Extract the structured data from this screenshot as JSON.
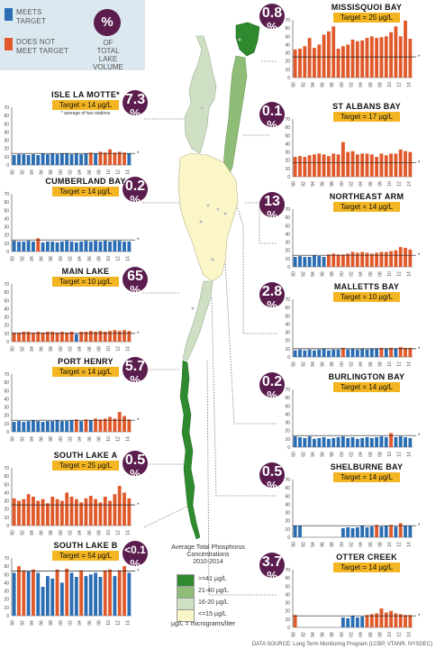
{
  "legend": {
    "meets_label_1": "MEETS",
    "meets_label_2": "TARGET",
    "not_label_1": "DOES NOT",
    "not_label_2": "MEET TARGET",
    "meets_color": "#2a6db3",
    "not_color": "#e0592a",
    "pct_symbol": "%",
    "pct_label_1": "OF",
    "pct_label_2": "TOTAL LAKE",
    "pct_label_3": "VOLUME"
  },
  "map_legend": {
    "title_1": "Average Total Phosphorus",
    "title_2": "Concentrations",
    "title_3": "2010-2014",
    "items": [
      {
        "label": ">=41 µg/L",
        "color": "#2f8a2f"
      },
      {
        "label": "21-40 µg/L",
        "color": "#8fbd77"
      },
      {
        "label": "16-20 µg/L",
        "color": "#cfdfc3"
      },
      {
        "label": "<=15 µg/L",
        "color": "#fbf6c8"
      }
    ],
    "unit_note": "µg/L = micrograms/liter"
  },
  "source": "DATA SOURCE: Long Term Monitoring Program (LCBP, VTANR, NYSDEC)",
  "colors": {
    "meets": "#2a6db3",
    "not": "#e0592a",
    "pct_circle": "#5a1d4e",
    "target_box": "#f3b521"
  },
  "chart_data": [
    {
      "type": "bar",
      "title": "MISSISQUOI BAY",
      "target_label": "Target = 25 µg/L",
      "target": 25,
      "pct": "0.8",
      "ylim": [
        0,
        70
      ],
      "yticks": [
        0,
        10,
        20,
        30,
        40,
        50,
        60,
        70
      ],
      "xticks": [
        "90",
        "92",
        "94",
        "96",
        "98",
        "00",
        "02",
        "04",
        "06",
        "08",
        "10",
        "12",
        "14"
      ],
      "x": [
        1990,
        1991,
        1992,
        1993,
        1994,
        1995,
        1996,
        1997,
        1998,
        1999,
        2000,
        2001,
        2002,
        2003,
        2004,
        2005,
        2006,
        2007,
        2008,
        2009,
        2010,
        2011,
        2012,
        2013,
        2014
      ],
      "values": [
        34,
        35,
        38,
        48,
        36,
        40,
        52,
        56,
        62,
        35,
        38,
        40,
        46,
        44,
        45,
        48,
        50,
        48,
        49,
        50,
        55,
        62,
        50,
        69,
        47
      ]
    },
    {
      "type": "bar",
      "title": "ST ALBANS BAY",
      "target_label": "Target = 17 µg/L",
      "target": 17,
      "pct": "0.1",
      "ylim": [
        0,
        70
      ],
      "yticks": [
        0,
        10,
        20,
        30,
        40,
        50,
        60,
        70
      ],
      "xticks": [
        "90",
        "92",
        "94",
        "96",
        "98",
        "00",
        "02",
        "04",
        "06",
        "08",
        "10",
        "12",
        "14"
      ],
      "x": [
        1990,
        1991,
        1992,
        1993,
        1994,
        1995,
        1996,
        1997,
        1998,
        1999,
        2000,
        2001,
        2002,
        2003,
        2004,
        2005,
        2006,
        2007,
        2008,
        2009,
        2010,
        2011,
        2012,
        2013,
        2014
      ],
      "values": [
        24,
        25,
        24,
        26,
        27,
        28,
        27,
        25,
        28,
        27,
        42,
        30,
        31,
        27,
        28,
        28,
        27,
        24,
        28,
        26,
        28,
        28,
        33,
        31,
        30
      ]
    },
    {
      "type": "bar",
      "title": "NORTHEAST ARM",
      "target_label": "Target = 14 µg/L",
      "target": 14,
      "pct": "13",
      "ylim": [
        0,
        70
      ],
      "yticks": [
        0,
        10,
        20,
        30,
        40,
        50,
        60,
        70
      ],
      "xticks": [
        "90",
        "92",
        "94",
        "96",
        "98",
        "00",
        "02",
        "04",
        "06",
        "08",
        "10",
        "12",
        "14"
      ],
      "x": [
        1990,
        1991,
        1992,
        1993,
        1994,
        1995,
        1996,
        1997,
        1998,
        1999,
        2000,
        2001,
        2002,
        2003,
        2004,
        2005,
        2006,
        2007,
        2008,
        2009,
        2010,
        2011,
        2012,
        2013,
        2014
      ],
      "values": [
        12,
        13,
        12,
        12,
        14,
        13,
        12,
        15,
        16,
        15,
        15,
        16,
        18,
        17,
        18,
        17,
        16,
        17,
        18,
        18,
        19,
        20,
        24,
        23,
        21
      ]
    },
    {
      "type": "bar",
      "title": "MALLETTS BAY",
      "target_label": "Target = 10 µg/L",
      "target": 10,
      "pct": "2.8",
      "ylim": [
        0,
        70
      ],
      "yticks": [
        0,
        10,
        20,
        30,
        40,
        50,
        60,
        70
      ],
      "xticks": [
        "90",
        "92",
        "94",
        "96",
        "98",
        "00",
        "02",
        "04",
        "06",
        "08",
        "10",
        "12",
        "14"
      ],
      "x": [
        1990,
        1991,
        1992,
        1993,
        1994,
        1995,
        1996,
        1997,
        1998,
        1999,
        2000,
        2001,
        2002,
        2003,
        2004,
        2005,
        2006,
        2007,
        2008,
        2009,
        2010,
        2011,
        2012,
        2013,
        2014
      ],
      "values": [
        8,
        9,
        8,
        9,
        8,
        9,
        10,
        8,
        9,
        9,
        11,
        9,
        10,
        9,
        10,
        9,
        10,
        10,
        11,
        10,
        11,
        10,
        12,
        11,
        11
      ]
    },
    {
      "type": "bar",
      "title": "BURLINGTON BAY",
      "target_label": "Target = 14 µg/L",
      "target": 14,
      "pct": "0.2",
      "ylim": [
        0,
        70
      ],
      "yticks": [
        0,
        10,
        20,
        30,
        40,
        50,
        60,
        70
      ],
      "xticks": [
        "90",
        "92",
        "94",
        "96",
        "98",
        "00",
        "02",
        "04",
        "06",
        "08",
        "10",
        "12",
        "14"
      ],
      "x": [
        1990,
        1991,
        1992,
        1993,
        1994,
        1995,
        1996,
        1997,
        1998,
        1999,
        2000,
        2001,
        2002,
        2003,
        2004,
        2005,
        2006,
        2007,
        2008,
        2009,
        2010,
        2011,
        2012,
        2013,
        2014
      ],
      "values": [
        13,
        12,
        11,
        13,
        10,
        11,
        12,
        10,
        11,
        12,
        13,
        11,
        12,
        10,
        11,
        12,
        11,
        12,
        13,
        12,
        17,
        12,
        13,
        12,
        11
      ]
    },
    {
      "type": "bar",
      "title": "SHELBURNE BAY",
      "target_label": "Target = 14 µg/L",
      "target": 14,
      "pct": "0.5",
      "ylim": [
        0,
        70
      ],
      "yticks": [
        0,
        10,
        20,
        30,
        40,
        50,
        60,
        70
      ],
      "xticks": [
        "90",
        "92",
        "94",
        "96",
        "98",
        "00",
        "02",
        "04",
        "06",
        "08",
        "10",
        "12",
        "14"
      ],
      "x": [
        1990,
        1991,
        1992,
        1993,
        1994,
        1995,
        1996,
        1997,
        1998,
        1999,
        2000,
        2001,
        2002,
        2003,
        2004,
        2005,
        2006,
        2007,
        2008,
        2009,
        2010,
        2011,
        2012,
        2013,
        2014
      ],
      "values": [
        14,
        14,
        null,
        null,
        null,
        null,
        null,
        null,
        null,
        null,
        11,
        12,
        11,
        12,
        14,
        12,
        13,
        15,
        13,
        14,
        15,
        13,
        17,
        14,
        14
      ]
    },
    {
      "type": "bar",
      "title": "OTTER CREEK",
      "target_label": "Target = 14 µg/L",
      "target": 14,
      "pct": "3.7",
      "ylim": [
        0,
        70
      ],
      "yticks": [
        0,
        10,
        20,
        30,
        40,
        50,
        60,
        70
      ],
      "xticks": [
        "90",
        "92",
        "94",
        "96",
        "98",
        "00",
        "02",
        "04",
        "06",
        "08",
        "10",
        "12",
        "14"
      ],
      "x": [
        1990,
        1991,
        1992,
        1993,
        1994,
        1995,
        1996,
        1997,
        1998,
        1999,
        2000,
        2001,
        2002,
        2003,
        2004,
        2005,
        2006,
        2007,
        2008,
        2009,
        2010,
        2011,
        2012,
        2013,
        2014
      ],
      "values": [
        15,
        null,
        null,
        null,
        null,
        null,
        null,
        null,
        null,
        null,
        12,
        11,
        14,
        12,
        13,
        15,
        16,
        17,
        23,
        18,
        20,
        17,
        16,
        15,
        15
      ]
    },
    {
      "type": "bar",
      "title": "ISLE LA MOTTE*",
      "target_label": "Target = 14 µg/L",
      "target": 14,
      "pct": "7.3",
      "note": "* average of two stations",
      "ylim": [
        0,
        70
      ],
      "yticks": [
        0,
        10,
        20,
        30,
        40,
        50,
        60,
        70
      ],
      "xticks": [
        "90",
        "92",
        "94",
        "96",
        "98",
        "00",
        "02",
        "04",
        "06",
        "08",
        "10",
        "12",
        "14"
      ],
      "x": [
        1990,
        1991,
        1992,
        1993,
        1994,
        1995,
        1996,
        1997,
        1998,
        1999,
        2000,
        2001,
        2002,
        2003,
        2004,
        2005,
        2006,
        2007,
        2008,
        2009,
        2010,
        2011,
        2012,
        2013,
        2014
      ],
      "values": [
        12,
        13,
        13,
        12,
        13,
        12,
        14,
        13,
        14,
        13,
        14,
        14,
        13,
        14,
        13,
        14,
        15,
        14,
        16,
        15,
        19,
        15,
        16,
        15,
        14
      ]
    },
    {
      "type": "bar",
      "title": "CUMBERLAND BAY",
      "target_label": "Target = 14 µg/L",
      "target": 14,
      "pct": "0.2",
      "ylim": [
        0,
        70
      ],
      "yticks": [
        0,
        10,
        20,
        30,
        40,
        50,
        60,
        70
      ],
      "xticks": [
        "90",
        "92",
        "94",
        "96",
        "98",
        "00",
        "02",
        "04",
        "06",
        "08",
        "10",
        "12",
        "14"
      ],
      "x": [
        1990,
        1991,
        1992,
        1993,
        1994,
        1995,
        1996,
        1997,
        1998,
        1999,
        2000,
        2001,
        2002,
        2003,
        2004,
        2005,
        2006,
        2007,
        2008,
        2009,
        2010,
        2011,
        2012,
        2013,
        2014
      ],
      "values": [
        13,
        12,
        12,
        13,
        12,
        16,
        11,
        12,
        12,
        11,
        12,
        13,
        12,
        11,
        12,
        13,
        12,
        13,
        12,
        13,
        12,
        13,
        13,
        12,
        12
      ]
    },
    {
      "type": "bar",
      "title": "MAIN LAKE",
      "target_label": "Target = 10 µg/L",
      "target": 10,
      "pct": "65",
      "ylim": [
        0,
        70
      ],
      "yticks": [
        0,
        10,
        20,
        30,
        40,
        50,
        60,
        70
      ],
      "xticks": [
        "90",
        "92",
        "94",
        "96",
        "98",
        "00",
        "02",
        "04",
        "06",
        "08",
        "10",
        "12",
        "14"
      ],
      "x": [
        1990,
        1991,
        1992,
        1993,
        1994,
        1995,
        1996,
        1997,
        1998,
        1999,
        2000,
        2001,
        2002,
        2003,
        2004,
        2005,
        2006,
        2007,
        2008,
        2009,
        2010,
        2011,
        2012,
        2013,
        2014
      ],
      "values": [
        11,
        11,
        12,
        12,
        11,
        12,
        11,
        12,
        12,
        11,
        12,
        11,
        12,
        9,
        12,
        12,
        13,
        12,
        13,
        12,
        13,
        14,
        13,
        14,
        13
      ]
    },
    {
      "type": "bar",
      "title": "PORT HENRY",
      "target_label": "Target = 14 µg/L",
      "target": 14,
      "pct": "5.7",
      "ylim": [
        0,
        70
      ],
      "yticks": [
        0,
        10,
        20,
        30,
        40,
        50,
        60,
        70
      ],
      "xticks": [
        "90",
        "92",
        "94",
        "96",
        "98",
        "00",
        "02",
        "04",
        "06",
        "08",
        "10",
        "12",
        "14"
      ],
      "x": [
        1990,
        1991,
        1992,
        1993,
        1994,
        1995,
        1996,
        1997,
        1998,
        1999,
        2000,
        2001,
        2002,
        2003,
        2004,
        2005,
        2006,
        2007,
        2008,
        2009,
        2010,
        2011,
        2012,
        2013,
        2014
      ],
      "values": [
        12,
        13,
        12,
        13,
        14,
        13,
        12,
        13,
        13,
        14,
        13,
        13,
        14,
        15,
        13,
        15,
        14,
        16,
        15,
        16,
        18,
        16,
        24,
        19,
        15
      ]
    },
    {
      "type": "bar",
      "title": "SOUTH LAKE A",
      "target_label": "Target = 25 µg/L",
      "target": 25,
      "pct": "0.5",
      "ylim": [
        0,
        70
      ],
      "yticks": [
        0,
        10,
        20,
        30,
        40,
        50,
        60,
        70
      ],
      "xticks": [
        "90",
        "92",
        "94",
        "96",
        "98",
        "00",
        "02",
        "04",
        "06",
        "08",
        "10",
        "12",
        "14"
      ],
      "x": [
        1990,
        1991,
        1992,
        1993,
        1994,
        1995,
        1996,
        1997,
        1998,
        1999,
        2000,
        2001,
        2002,
        2003,
        2004,
        2005,
        2006,
        2007,
        2008,
        2009,
        2010,
        2011,
        2012,
        2013,
        2014
      ],
      "values": [
        33,
        30,
        32,
        38,
        35,
        30,
        32,
        27,
        35,
        32,
        30,
        40,
        35,
        32,
        28,
        33,
        36,
        32,
        28,
        35,
        30,
        38,
        48,
        40,
        33
      ]
    },
    {
      "type": "bar",
      "title": "SOUTH LAKE B",
      "target_label": "Target = 54 µg/L",
      "target": 54,
      "pct": "<0.1",
      "ylim": [
        0,
        70
      ],
      "yticks": [
        0,
        10,
        20,
        30,
        40,
        50,
        60,
        70
      ],
      "xticks": [
        "90",
        "92",
        "94",
        "96",
        "98",
        "00",
        "02",
        "04",
        "06",
        "08",
        "10",
        "12",
        "14"
      ],
      "x": [
        1990,
        1991,
        1992,
        1993,
        1994,
        1995,
        1996,
        1997,
        1998,
        1999,
        2000,
        2001,
        2002,
        2003,
        2004,
        2005,
        2006,
        2007,
        2008,
        2009,
        2010,
        2011,
        2012,
        2013,
        2014
      ],
      "values": [
        52,
        60,
        55,
        54,
        56,
        52,
        35,
        48,
        45,
        56,
        40,
        57,
        52,
        47,
        55,
        48,
        50,
        52,
        47,
        55,
        56,
        48,
        55,
        60,
        52
      ]
    }
  ]
}
